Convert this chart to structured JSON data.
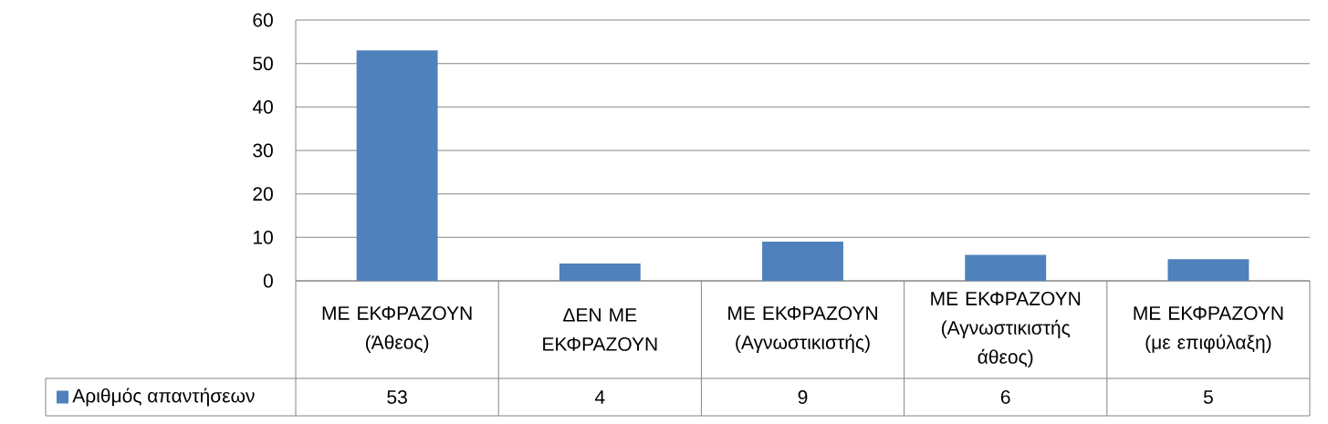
{
  "chart_data": {
    "type": "bar",
    "categories": [
      "ΜΕ ΕΚΦΡΑΖΟΥΝ (Άθεος)",
      "ΔΕΝ ΜΕ ΕΚΦΡΑΖΟΥΝ",
      "ΜΕ ΕΚΦΡΑΖΟΥΝ (Αγνωστικιστής)",
      "ΜΕ ΕΚΦΡΑΖΟΥΝ (Αγνωστικιστής άθεος)",
      "ΜΕ ΕΚΦΡΑΖΟΥΝ (με επιφύλαξη)"
    ],
    "series": [
      {
        "name": "Αριθμός απαντήσεων",
        "color": "#4f81bd",
        "values": [
          53,
          4,
          9,
          6,
          5
        ]
      }
    ],
    "ylim": [
      0,
      60
    ],
    "yticks": [
      0,
      10,
      20,
      30,
      40,
      50,
      60
    ],
    "grid": "y",
    "legend": "bottom left",
    "data_labels": true
  }
}
